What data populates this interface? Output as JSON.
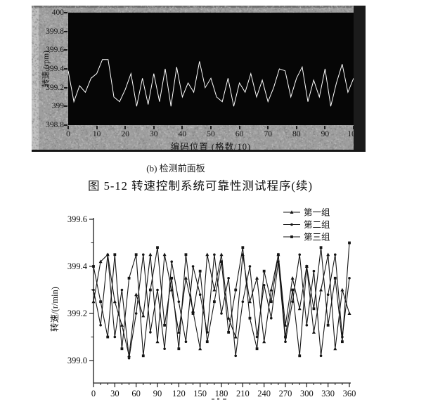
{
  "page": {
    "background": "#ffffff"
  },
  "top_panel": {
    "bg_color": "#9e9e9e",
    "plot_bg_color": "#060606",
    "trace_color": "#ffffff",
    "border_color": "#161616"
  },
  "captions": {
    "subfig": "(b) 检测前面板",
    "figure": "图 5-12  转速控制系统可靠性测试程序(续)"
  },
  "bottom_legend": {
    "items": [
      {
        "label": "第一组",
        "marker": "triangle"
      },
      {
        "label": "第二组",
        "marker": "circle"
      },
      {
        "label": "第三组",
        "marker": "square"
      }
    ]
  },
  "chart_data": [
    {
      "type": "line",
      "title": "",
      "xlabel": "编码位置 (格数/10)",
      "ylabel": "转速 (rpm)",
      "xlim": [
        0,
        100
      ],
      "ylim": [
        398.8,
        400
      ],
      "xtick_labels": [
        "0",
        "10",
        "20",
        "30",
        "40",
        "50",
        "60",
        "70",
        "80",
        "90",
        "100"
      ],
      "ytick_labels": [
        "398.8",
        "399",
        "399.2",
        "399.4",
        "399.6",
        "399.8",
        "400"
      ],
      "grid": false,
      "line_color": "#ffffff",
      "plot_background": "#060606",
      "x": [
        0,
        2,
        4,
        6,
        8,
        10,
        12,
        14,
        16,
        18,
        20,
        22,
        24,
        26,
        28,
        30,
        32,
        34,
        36,
        38,
        40,
        42,
        44,
        46,
        48,
        50,
        52,
        54,
        56,
        58,
        60,
        62,
        64,
        66,
        68,
        70,
        72,
        74,
        76,
        78,
        80,
        82,
        84,
        86,
        88,
        90,
        92,
        94,
        96,
        98,
        100
      ],
      "values": [
        399.38,
        399.05,
        399.22,
        399.15,
        399.3,
        399.35,
        399.5,
        399.5,
        399.1,
        399.05,
        399.18,
        399.35,
        399.0,
        399.3,
        399.02,
        399.35,
        399.05,
        399.4,
        399.0,
        399.42,
        399.1,
        399.25,
        399.15,
        399.48,
        399.2,
        399.3,
        399.1,
        399.05,
        399.3,
        399.0,
        399.25,
        399.15,
        399.35,
        399.1,
        399.28,
        399.05,
        399.2,
        399.4,
        399.38,
        399.1,
        399.3,
        399.42,
        399.05,
        399.28,
        399.1,
        399.4,
        399.0,
        399.25,
        399.45,
        399.15,
        399.3
      ]
    },
    {
      "type": "line",
      "title": "",
      "xlabel": "",
      "ylabel": "转速/(r/min)",
      "xlim": [
        0,
        360
      ],
      "ylim": [
        398.9,
        399.6
      ],
      "xtick_labels": [
        "0",
        "30",
        "60",
        "90",
        "120",
        "150",
        "180",
        "210",
        "240",
        "270",
        "300",
        "330",
        "360"
      ],
      "ytick_labels": [
        "399.0",
        "399.2",
        "399.4",
        "399.6"
      ],
      "minor_x_step": 10,
      "minor_y_step": 0.1,
      "grid": false,
      "legend_position": "top-right",
      "line_color": "#151515",
      "x": [
        0,
        10,
        20,
        30,
        40,
        50,
        60,
        70,
        80,
        90,
        100,
        110,
        120,
        130,
        140,
        150,
        160,
        170,
        180,
        190,
        200,
        210,
        220,
        230,
        240,
        250,
        260,
        270,
        280,
        290,
        300,
        310,
        320,
        330,
        340,
        350,
        360
      ],
      "series": [
        {
          "name": "第一组",
          "marker": "triangle",
          "values": [
            399.25,
            399.42,
            399.45,
            399.25,
            399.15,
            399.02,
            399.28,
            399.19,
            399.45,
            399.08,
            399.45,
            399.3,
            399.12,
            399.35,
            399.21,
            399.05,
            399.45,
            399.3,
            399.45,
            399.18,
            399.1,
            399.45,
            399.25,
            399.35,
            399.08,
            399.3,
            399.45,
            399.15,
            399.35,
            399.22,
            399.4,
            399.12,
            399.3,
            399.45,
            399.05,
            399.3,
            399.2
          ]
        },
        {
          "name": "第二组",
          "marker": "circle",
          "values": [
            399.3,
            399.15,
            399.45,
            399.1,
            399.3,
            399.01,
            399.2,
            399.45,
            399.12,
            399.3,
            399.05,
            399.42,
            399.25,
            399.08,
            399.4,
            399.28,
            399.12,
            399.45,
            399.2,
            399.35,
            399.02,
            399.25,
            399.4,
            399.1,
            399.32,
            399.18,
            399.42,
            399.08,
            399.25,
            399.45,
            399.15,
            399.38,
            399.02,
            399.28,
            399.45,
            399.1,
            399.35
          ]
        },
        {
          "name": "第三组",
          "marker": "square",
          "values": [
            399.4,
            399.25,
            399.1,
            399.45,
            399.05,
            399.35,
            399.45,
            399.02,
            399.3,
            399.48,
            399.15,
            399.35,
            399.05,
            399.45,
            399.2,
            399.38,
            399.08,
            399.25,
            399.42,
            399.12,
            399.3,
            399.48,
            399.18,
            399.05,
            399.38,
            399.25,
            399.45,
            399.1,
            399.3,
            399.02,
            399.4,
            399.22,
            399.48,
            399.15,
            399.35,
            399.08,
            399.5
          ]
        }
      ]
    }
  ]
}
